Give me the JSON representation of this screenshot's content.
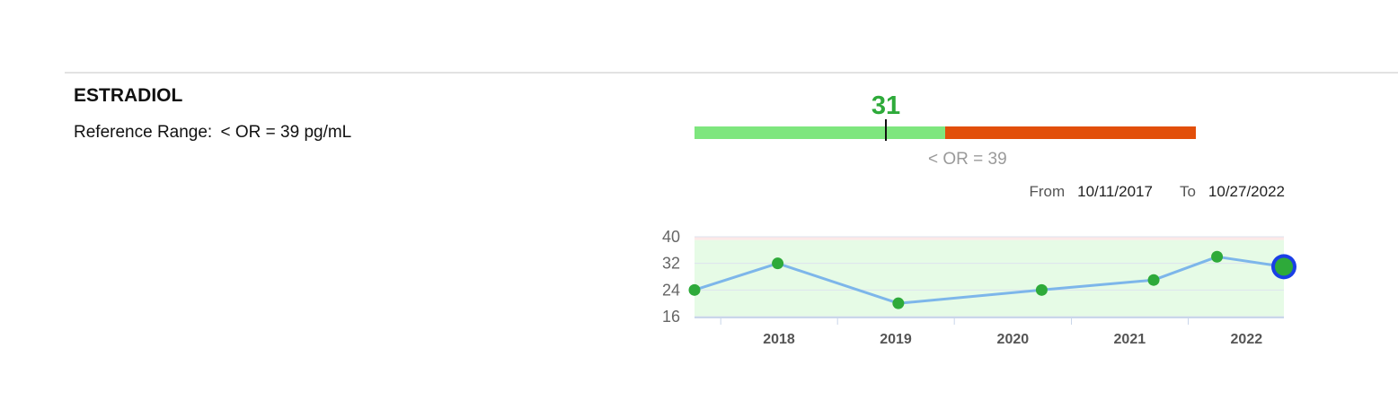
{
  "test": {
    "name": "ESTRADIOL",
    "reference_label": "Reference Range:",
    "reference_value": "< OR = 39 pg/mL"
  },
  "range_bar": {
    "current_value": "31",
    "threshold_label": "< OR = 39",
    "value_color": "#2eaa3a",
    "normal_color": "#7ee67e",
    "high_color": "#e24f0a"
  },
  "date_range": {
    "from_label": "From",
    "from_value": "10/11/2017",
    "to_label": "To",
    "to_value": "10/27/2022"
  },
  "chart_data": {
    "type": "line",
    "x_type": "date",
    "x": [
      "2017-10-11",
      "2018-06-28",
      "2019-07-10",
      "2020-09-30",
      "2021-09-15",
      "2022-04-01",
      "2022-10-27"
    ],
    "values": [
      24,
      32,
      20,
      24,
      27,
      34,
      31
    ],
    "xlim": [
      "2017-10-11",
      "2022-10-27"
    ],
    "ylim": [
      16,
      40
    ],
    "yticks": [
      16,
      24,
      32,
      40
    ],
    "xticks": [
      "2018",
      "2019",
      "2020",
      "2021",
      "2022"
    ],
    "normal_band": [
      16,
      39
    ],
    "grid": true,
    "colors": {
      "line": "#7db6ea",
      "point": "#2eaa3a",
      "normal_band": "#e6fbe6",
      "high_band": "#fde8e8",
      "latest_ring": "#1a3fe6"
    }
  }
}
